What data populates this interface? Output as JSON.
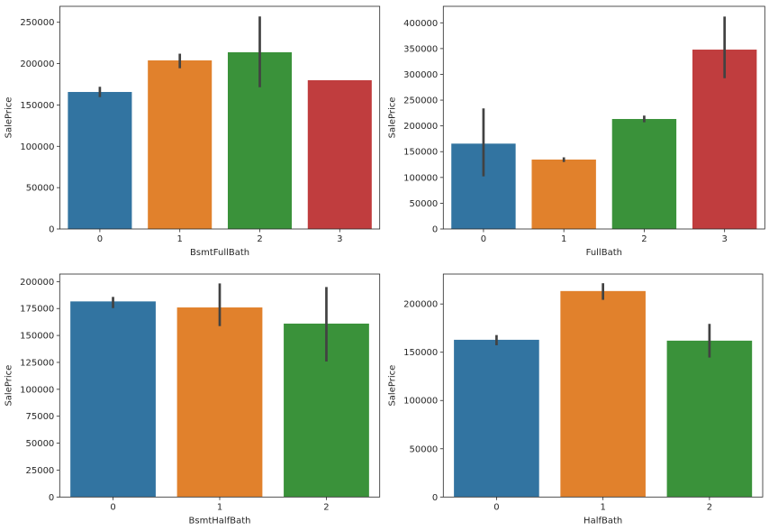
{
  "chart_data": [
    {
      "type": "bar",
      "title": "",
      "xlabel": "BsmtFullBath",
      "ylabel": "SalePrice",
      "categories": [
        "0",
        "1",
        "2",
        "3"
      ],
      "values": [
        165700,
        203900,
        213700,
        179900
      ],
      "error_low": [
        159500,
        194400,
        171500,
        null
      ],
      "error_high": [
        172000,
        212000,
        257000,
        null
      ],
      "ylim": [
        0,
        269300
      ],
      "yticks": [
        0,
        50000,
        100000,
        150000,
        200000,
        250000
      ],
      "ytick_labels": [
        "0",
        "50000",
        "100000",
        "150000",
        "200000",
        "250000"
      ],
      "colors": [
        "#3274a1",
        "#e1812c",
        "#3a923a",
        "#c03d3e"
      ],
      "grid": false
    },
    {
      "type": "bar",
      "title": "",
      "xlabel": "FullBath",
      "ylabel": "SalePrice",
      "categories": [
        "0",
        "1",
        "2",
        "3"
      ],
      "values": [
        165600,
        134700,
        213400,
        348000
      ],
      "error_low": [
        102000,
        130000,
        207000,
        292600
      ],
      "error_high": [
        234000,
        139000,
        220000,
        412000
      ],
      "ylim": [
        0,
        432000
      ],
      "yticks": [
        0,
        50000,
        100000,
        150000,
        200000,
        250000,
        300000,
        350000,
        400000
      ],
      "ytick_labels": [
        "0",
        "50000",
        "100000",
        "150000",
        "200000",
        "250000",
        "300000",
        "350000",
        "400000"
      ],
      "colors": [
        "#3274a1",
        "#e1812c",
        "#3a923a",
        "#c03d3e"
      ],
      "grid": false
    },
    {
      "type": "bar",
      "title": "",
      "xlabel": "BsmtHalfBath",
      "ylabel": "SalePrice",
      "categories": [
        "0",
        "1",
        "2"
      ],
      "values": [
        181600,
        176000,
        161000
      ],
      "error_low": [
        175400,
        158700,
        125800
      ],
      "error_high": [
        185800,
        198300,
        195000
      ],
      "ylim": [
        0,
        207000
      ],
      "yticks": [
        0,
        25000,
        50000,
        75000,
        100000,
        125000,
        150000,
        175000,
        200000
      ],
      "ytick_labels": [
        "0",
        "25000",
        "50000",
        "75000",
        "100000",
        "125000",
        "150000",
        "175000",
        "200000"
      ],
      "colors": [
        "#3274a1",
        "#e1812c",
        "#3a923a"
      ],
      "grid": false
    },
    {
      "type": "bar",
      "title": "",
      "xlabel": "HalfBath",
      "ylabel": "SalePrice",
      "categories": [
        "0",
        "1",
        "2"
      ],
      "values": [
        162900,
        213400,
        162000
      ],
      "error_low": [
        157200,
        204300,
        144500
      ],
      "error_high": [
        167800,
        221500,
        179400
      ],
      "ylim": [
        0,
        231000
      ],
      "yticks": [
        0,
        50000,
        100000,
        150000,
        200000
      ],
      "ytick_labels": [
        "0",
        "50000",
        "100000",
        "150000",
        "200000"
      ],
      "colors": [
        "#3274a1",
        "#e1812c",
        "#3a923a"
      ],
      "grid": false
    }
  ]
}
